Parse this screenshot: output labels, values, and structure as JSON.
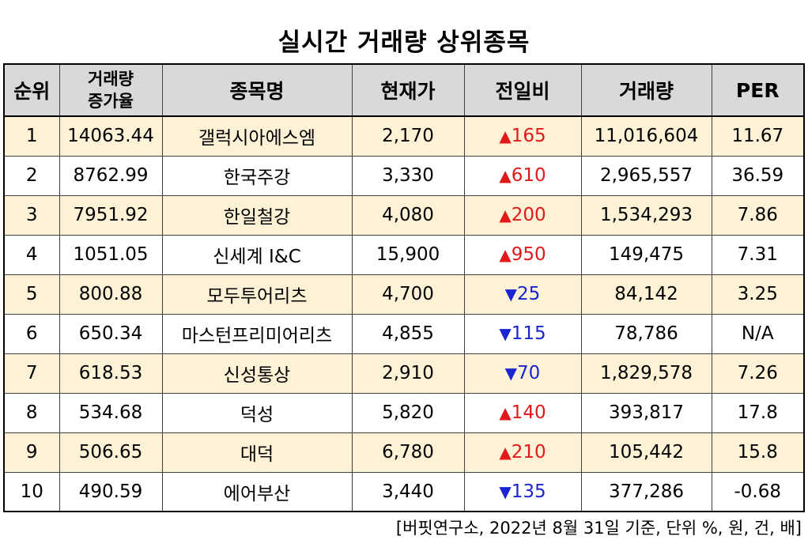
{
  "title": "실시간 거래량 상위종목",
  "table": {
    "headers": {
      "rank": "순위",
      "volume_increase_line1": "거래량",
      "volume_increase_line2": "증가율",
      "name": "종목명",
      "price": "현재가",
      "change": "전일비",
      "volume": "거래량",
      "per": "PER"
    },
    "rows": [
      {
        "rank": "1",
        "increase": "14063.44",
        "name": "갤럭시아에스엠",
        "price": "2,170",
        "direction": "up",
        "arrow": "▲",
        "change": "165",
        "volume": "11,016,604",
        "per": "11.67"
      },
      {
        "rank": "2",
        "increase": "8762.99",
        "name": "한국주강",
        "price": "3,330",
        "direction": "up",
        "arrow": "▲",
        "change": "610",
        "volume": "2,965,557",
        "per": "36.59"
      },
      {
        "rank": "3",
        "increase": "7951.92",
        "name": "한일철강",
        "price": "4,080",
        "direction": "up",
        "arrow": "▲",
        "change": "200",
        "volume": "1,534,293",
        "per": "7.86"
      },
      {
        "rank": "4",
        "increase": "1051.05",
        "name": "신세계 I&C",
        "price": "15,900",
        "direction": "up",
        "arrow": "▲",
        "change": "950",
        "volume": "149,475",
        "per": "7.31"
      },
      {
        "rank": "5",
        "increase": "800.88",
        "name": "모두투어리츠",
        "price": "4,700",
        "direction": "down",
        "arrow": "▼",
        "change": "25",
        "volume": "84,142",
        "per": "3.25"
      },
      {
        "rank": "6",
        "increase": "650.34",
        "name": "마스턴프리미어리츠",
        "price": "4,855",
        "direction": "down",
        "arrow": "▼",
        "change": "115",
        "volume": "78,786",
        "per": "N/A"
      },
      {
        "rank": "7",
        "increase": "618.53",
        "name": "신성통상",
        "price": "2,910",
        "direction": "down",
        "arrow": "▼",
        "change": "70",
        "volume": "1,829,578",
        "per": "7.26"
      },
      {
        "rank": "8",
        "increase": "534.68",
        "name": "덕성",
        "price": "5,820",
        "direction": "up",
        "arrow": "▲",
        "change": "140",
        "volume": "393,817",
        "per": "17.8"
      },
      {
        "rank": "9",
        "increase": "506.65",
        "name": "대덕",
        "price": "6,780",
        "direction": "up",
        "arrow": "▲",
        "change": "210",
        "volume": "105,442",
        "per": "15.8"
      },
      {
        "rank": "10",
        "increase": "490.59",
        "name": "에어부산",
        "price": "3,440",
        "direction": "down",
        "arrow": "▼",
        "change": "135",
        "volume": "377,286",
        "per": "-0.68"
      }
    ]
  },
  "colors": {
    "up": "#e31919",
    "down": "#1a24d1",
    "header_bg": "#d9d9d9",
    "stripe_bg": "#fdf2d5"
  },
  "footnote": "[버핏연구소, 2022년 8월 31일 기준, 단위 %, 원, 건, 배]"
}
